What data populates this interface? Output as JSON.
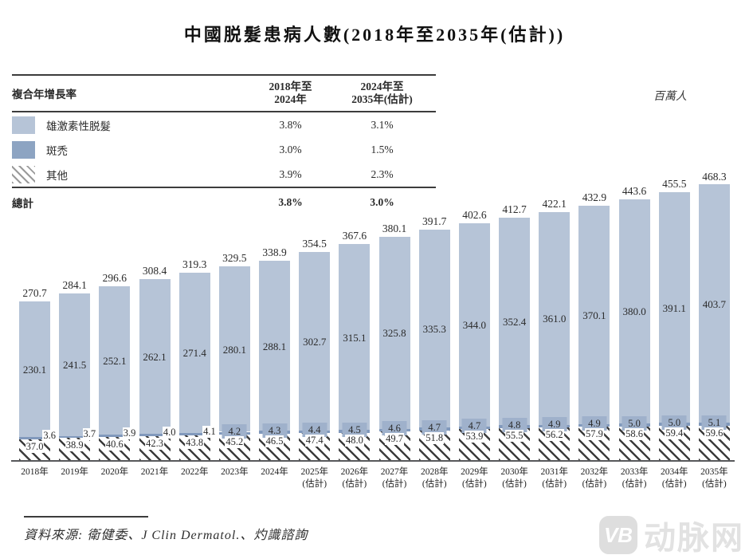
{
  "title": "中國脱髮患病人數(2018年至2035年(估計))",
  "unit_label": "百萬人",
  "cagr_table": {
    "header_label": "複合年增長率",
    "col1": {
      "line1": "2018年至",
      "line2": "2024年"
    },
    "col2": {
      "line1": "2024年至",
      "line2": "2035年(估計)"
    },
    "rows": [
      {
        "label": "雄激素性脱髮",
        "v1": "3.8%",
        "v2": "3.1%"
      },
      {
        "label": "斑禿",
        "v1": "3.0%",
        "v2": "1.5%"
      },
      {
        "label": "其他",
        "v1": "3.9%",
        "v2": "2.3%"
      }
    ],
    "total": {
      "label": "總計",
      "v1": "3.8%",
      "v2": "3.0%"
    }
  },
  "chart_data": {
    "type": "bar",
    "stacked": true,
    "title": "中國脱髮患病人數(2018年至2035年(估計))",
    "ylabel": "百萬人",
    "ylim": [
      0,
      480
    ],
    "grid": false,
    "legend_position": "top-left-table",
    "categories": [
      "2018年",
      "2019年",
      "2020年",
      "2021年",
      "2022年",
      "2023年",
      "2024年",
      "2025年(估計)",
      "2026年(估計)",
      "2027年(估計)",
      "2028年(估計)",
      "2029年(估計)",
      "2030年(估計)",
      "2031年(估計)",
      "2032年(估計)",
      "2033年(估計)",
      "2034年(估計)",
      "2035年(估計)"
    ],
    "series": [
      {
        "name": "其他",
        "style": "hatch",
        "values": [
          37.0,
          38.9,
          40.6,
          42.3,
          43.8,
          45.2,
          46.5,
          47.4,
          48.0,
          49.7,
          51.8,
          53.9,
          55.5,
          56.2,
          57.9,
          58.6,
          59.4,
          59.6
        ]
      },
      {
        "name": "斑禿",
        "style": "dark-blue",
        "values": [
          3.6,
          3.7,
          3.9,
          4.0,
          4.1,
          4.2,
          4.3,
          4.4,
          4.5,
          4.6,
          4.7,
          4.7,
          4.8,
          4.9,
          4.9,
          5.0,
          5.0,
          5.1
        ]
      },
      {
        "name": "雄激素性脱髮",
        "style": "light-blue",
        "values": [
          230.1,
          241.5,
          252.1,
          262.1,
          271.4,
          280.1,
          288.1,
          302.7,
          315.1,
          325.8,
          335.3,
          344.0,
          352.4,
          361.0,
          370.1,
          380.0,
          391.1,
          403.7
        ]
      }
    ],
    "totals": [
      270.7,
      284.1,
      296.6,
      308.4,
      319.3,
      329.5,
      338.9,
      354.5,
      367.6,
      380.1,
      391.7,
      402.6,
      412.7,
      422.1,
      432.9,
      443.6,
      455.5,
      468.3
    ],
    "colors": {
      "androgenetic": "#b6c4d7",
      "alopecia_areata": "#8199bc",
      "band_label_box": "#9fb1cb",
      "hatch_stroke": "#3c3c3c"
    }
  },
  "source": "資料來源: 衛健委、J Clin Dermatol.、灼識諮詢",
  "watermark": {
    "logo": "VB",
    "name": "动脉网"
  }
}
